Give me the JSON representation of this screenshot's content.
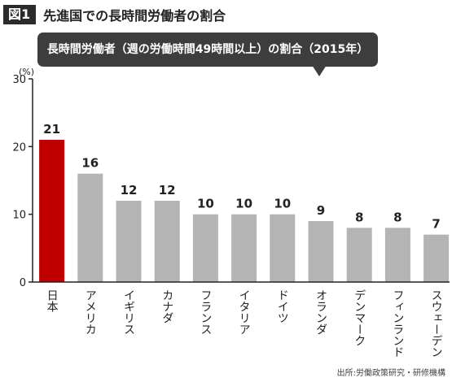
{
  "figure": {
    "label": "図1",
    "title": "先進国での長時間労働者の割合",
    "source": "出所:労働政策研究・研修機構"
  },
  "chart_data": {
    "type": "bar",
    "title": "長時間労働者（週の労働時間49時間以上）の割合（2015年）",
    "unit_label": "(%)",
    "categories": [
      "日本",
      "アメリカ",
      "イギリス",
      "カナダ",
      "フランス",
      "イタリア",
      "ドイツ",
      "オランダ",
      "デンマーク",
      "フィンランド",
      "スウェーデン"
    ],
    "values": [
      21,
      16,
      12,
      12,
      10,
      10,
      10,
      9,
      8,
      8,
      7
    ],
    "value_labels": [
      "21",
      "16",
      "12",
      "12",
      "10",
      "10",
      "10",
      "9",
      "8",
      "8",
      "7"
    ],
    "ylim": [
      0,
      30
    ],
    "yticks": [
      0,
      10,
      20,
      30
    ],
    "grid": false,
    "highlight_index": 0,
    "colors": {
      "highlight": "#c00000",
      "bar": "#b4b4b4",
      "axis": "#222222"
    }
  }
}
